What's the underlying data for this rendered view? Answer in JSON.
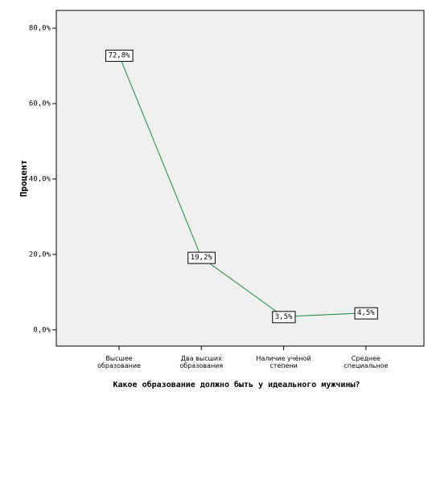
{
  "chart_data": {
    "type": "line",
    "y_label": "Процент",
    "x_label": "Какое образование должно быть у идеального мужчины?",
    "categories": [
      "Высшее образование",
      "Два высших образования",
      "Наличие учёной степени",
      "Среднее специальное"
    ],
    "values": [
      72.8,
      19.2,
      3.5,
      4.5
    ],
    "value_labels": [
      "72,8%",
      "19,2%",
      "3,5%",
      "4,5%"
    ],
    "color": "#1e8a3c",
    "ylim": [
      -4.3,
      84.7
    ],
    "yticks": [
      {
        "value": 0,
        "label": "0,0%"
      },
      {
        "value": 20,
        "label": "20,0%"
      },
      {
        "value": 40,
        "label": "40,0%"
      },
      {
        "value": 60,
        "label": "60,0%"
      },
      {
        "value": 80,
        "label": "80,0%"
      }
    ]
  }
}
